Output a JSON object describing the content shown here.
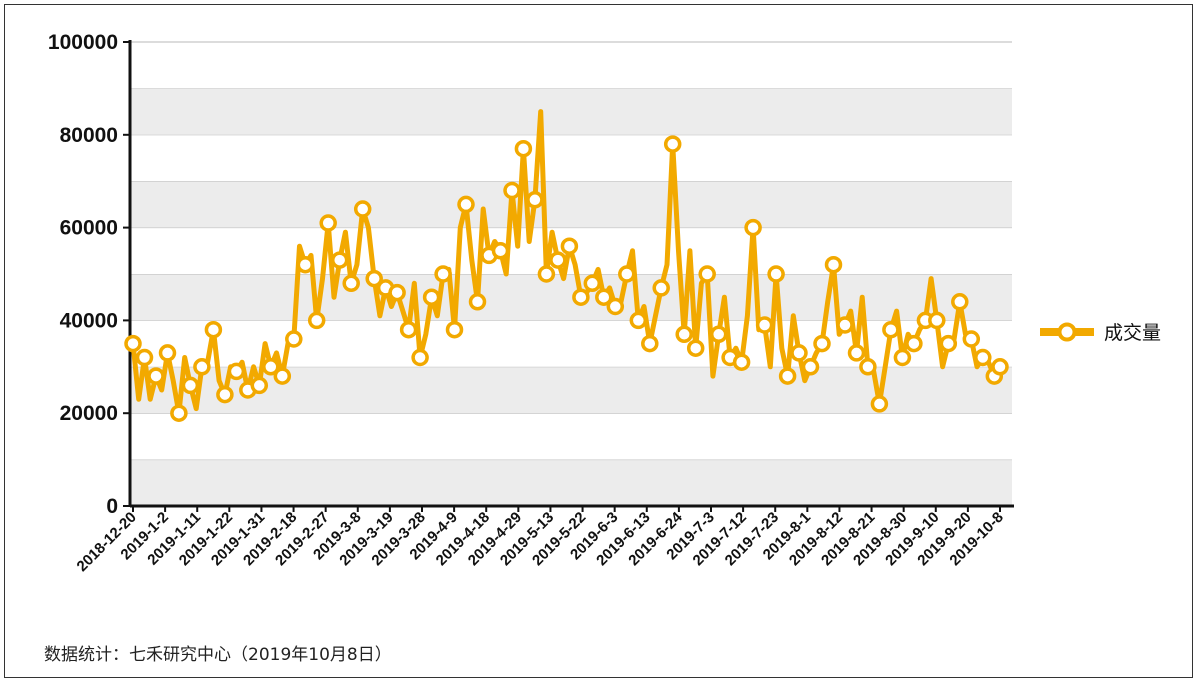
{
  "chart_data": {
    "type": "line",
    "ylim": [
      0,
      100000
    ],
    "y_ticks": [
      "0",
      "20000",
      "40000",
      "60000",
      "80000",
      "100000"
    ],
    "x_tick_labels": [
      "2018-12-20",
      "2019-1-2",
      "2019-1-11",
      "2019-1-22",
      "2019-1-31",
      "2019-2-18",
      "2019-2-27",
      "2019-3-8",
      "2019-3-19",
      "2019-3-28",
      "2019-4-9",
      "2019-4-18",
      "2019-4-29",
      "2019-5-13",
      "2019-5-22",
      "2019-6-3",
      "2019-6-13",
      "2019-6-24",
      "2019-7-3",
      "2019-7-12",
      "2019-7-23",
      "2019-8-1",
      "2019-8-12",
      "2019-8-21",
      "2019-8-30",
      "2019-9-10",
      "2019-9-20",
      "2019-10-8"
    ],
    "grid": "horizontal bands",
    "legend_position": "right",
    "series": [
      {
        "name": "成交量",
        "color": "#F2A900",
        "values": [
          35000,
          23000,
          32000,
          23000,
          28000,
          25000,
          33000,
          27000,
          20000,
          32000,
          26000,
          21000,
          30000,
          31000,
          38000,
          27000,
          24000,
          30000,
          29000,
          31000,
          25000,
          30000,
          26000,
          35000,
          30000,
          33000,
          28000,
          35000,
          36000,
          56000,
          52000,
          54000,
          40000,
          49000,
          61000,
          45000,
          53000,
          59000,
          48000,
          52000,
          64000,
          60000,
          49000,
          41000,
          47000,
          43000,
          46000,
          42000,
          38000,
          48000,
          32000,
          37000,
          45000,
          41000,
          50000,
          51000,
          38000,
          60000,
          65000,
          53000,
          44000,
          64000,
          54000,
          57000,
          55000,
          50000,
          68000,
          56000,
          77000,
          57000,
          66000,
          85000,
          50000,
          59000,
          53000,
          49000,
          56000,
          52000,
          45000,
          46000,
          48000,
          51000,
          45000,
          47000,
          43000,
          44000,
          50000,
          55000,
          40000,
          43000,
          35000,
          41000,
          47000,
          52000,
          78000,
          55000,
          37000,
          55000,
          34000,
          48000,
          50000,
          28000,
          37000,
          45000,
          32000,
          34000,
          31000,
          41000,
          60000,
          38000,
          39000,
          30000,
          50000,
          34000,
          28000,
          41000,
          33000,
          27000,
          30000,
          33000,
          35000,
          44000,
          52000,
          37000,
          39000,
          42000,
          33000,
          45000,
          30000,
          29000,
          22000,
          30000,
          38000,
          42000,
          32000,
          37000,
          35000,
          38000,
          40000,
          49000,
          40000,
          30000,
          35000,
          36000,
          44000,
          37000,
          36000,
          30000,
          32000,
          31000,
          28000,
          30000
        ]
      }
    ]
  },
  "legend": {
    "label": "成交量"
  },
  "source_note": "数据统计：七禾研究中心（2019年10月8日）"
}
